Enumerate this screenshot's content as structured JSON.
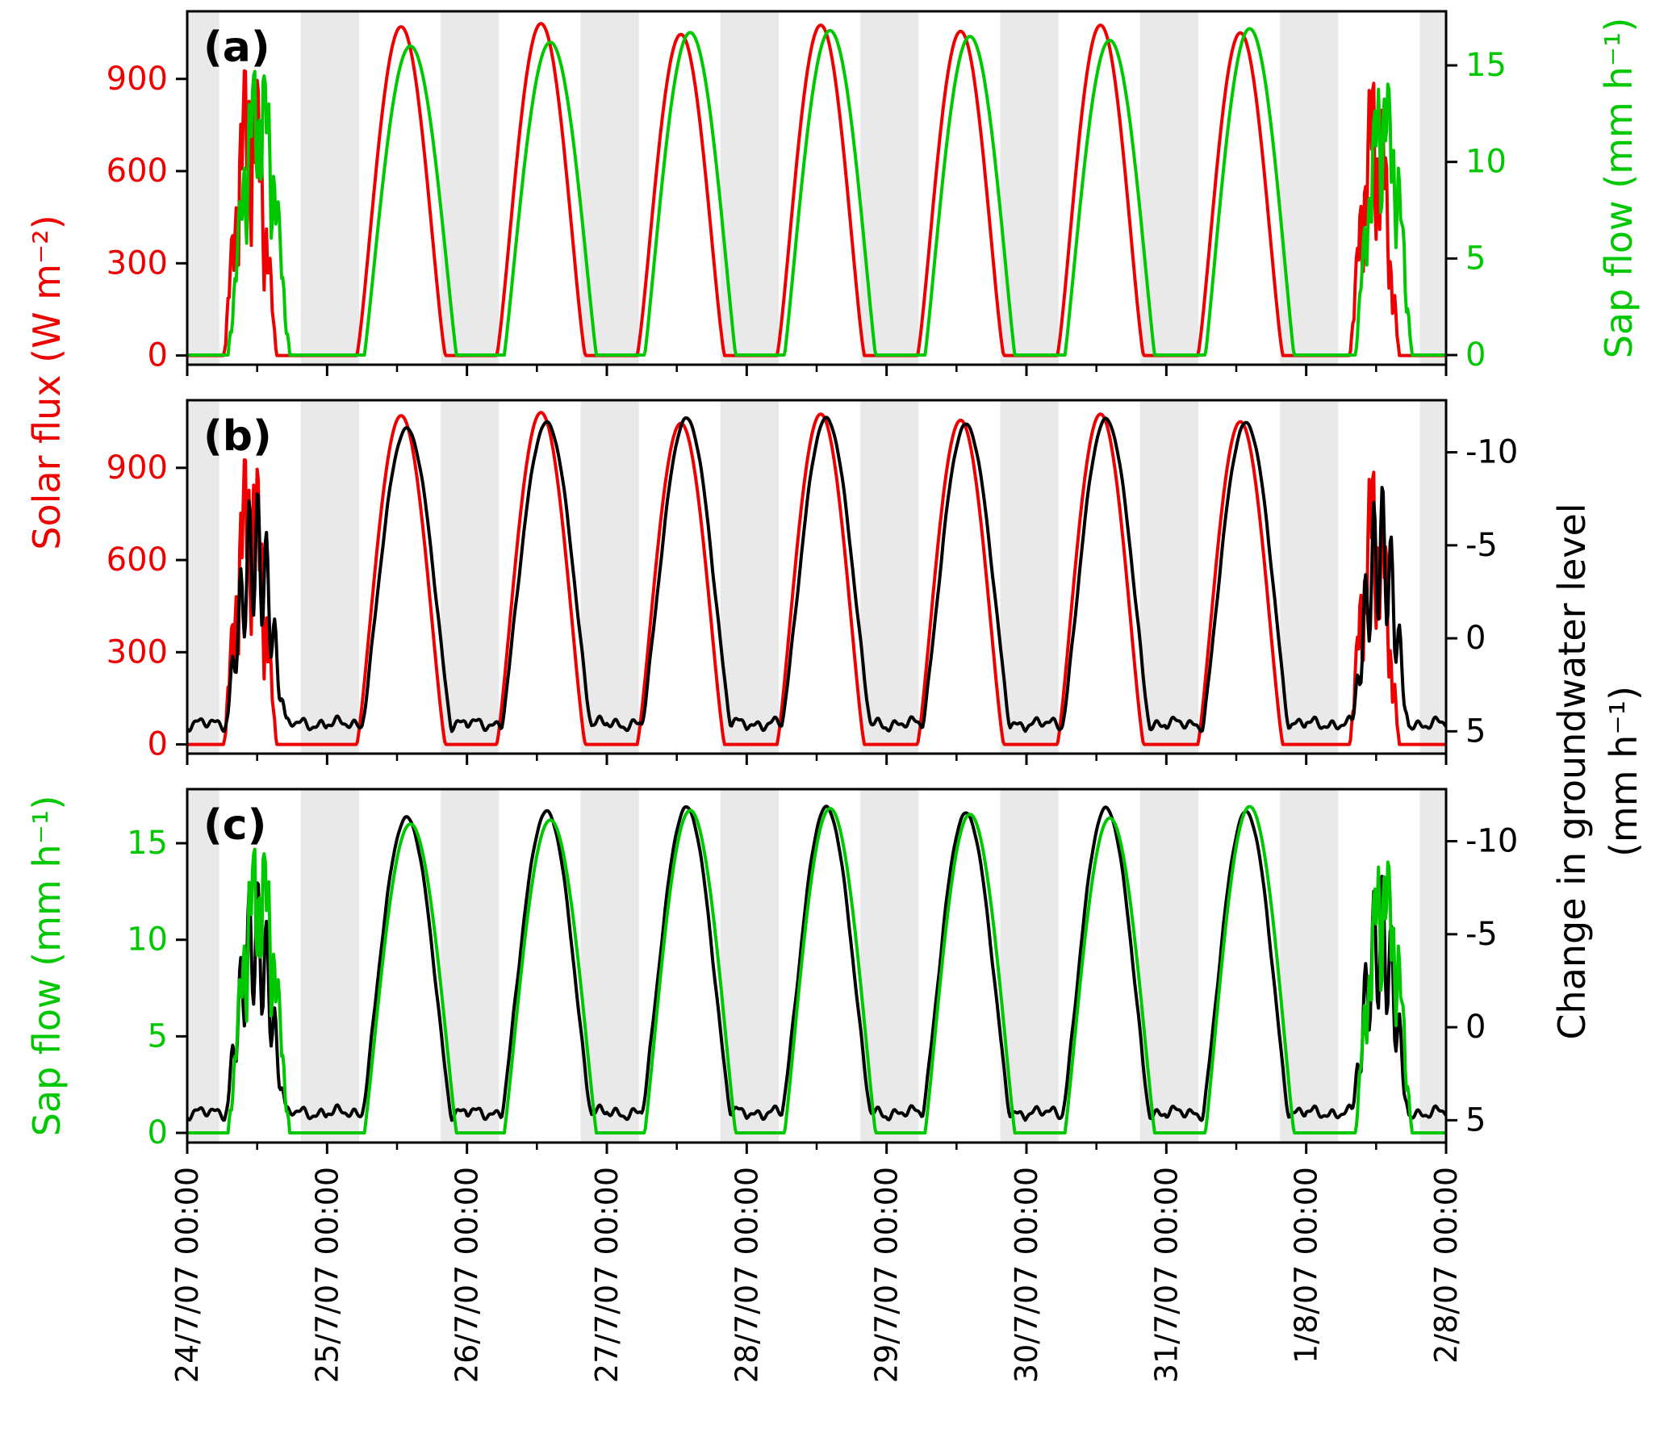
{
  "chart_data": {
    "type": "line",
    "title": "",
    "x_axis": {
      "tick_labels": [
        "24/7/07 00:00",
        "25/7/07 00:00",
        "26/7/07 00:00",
        "27/7/07 00:00",
        "28/7/07 00:00",
        "29/7/07 00:00",
        "30/7/07 00:00",
        "31/7/07 00:00",
        "1/8/07 00:00",
        "2/8/07 00:00"
      ],
      "hours_total": 216,
      "night_shading": {
        "evening_start": 19.5,
        "morning_end": 5.5,
        "color": "#e9e9e9"
      }
    },
    "axis_titles": {
      "left": [
        {
          "text": "Solar flux (W m⁻²)",
          "color": "#ee0000",
          "panels": [
            "a",
            "b"
          ]
        },
        {
          "text": "Sap flow (mm h⁻¹)",
          "color": "#00c800",
          "panels": [
            "c"
          ]
        }
      ],
      "right": [
        {
          "text": "Sap flow (mm h⁻¹)",
          "color": "#00c800",
          "panels": [
            "a"
          ]
        },
        {
          "text": "Change in groundwater level",
          "text2": "(mm h⁻¹)",
          "color": "#000000",
          "panels": [
            "b",
            "c"
          ]
        }
      ]
    },
    "panels": [
      {
        "id": "a",
        "tag": "(a)",
        "left": {
          "key_color": "#ee0000",
          "ticks": [
            "0",
            "300",
            "600",
            "900"
          ],
          "tick_values": [
            0,
            300,
            600,
            900
          ],
          "min": -30,
          "max": 1120
        },
        "right": {
          "key_color": "#00c800",
          "ticks": [
            "0",
            "5",
            "10",
            "15"
          ],
          "tick_values": [
            0,
            5,
            10,
            15
          ],
          "min": -0.5,
          "max": 17.8
        },
        "series": [
          {
            "key": "solar_flux",
            "axis": "left"
          },
          {
            "key": "sap_flow",
            "axis": "right"
          }
        ]
      },
      {
        "id": "b",
        "tag": "(b)",
        "left": {
          "key_color": "#ee0000",
          "ticks": [
            "0",
            "300",
            "600",
            "900"
          ],
          "tick_values": [
            0,
            300,
            600,
            900
          ],
          "min": -30,
          "max": 1120
        },
        "right": {
          "key_color": "#000000",
          "ticks": [
            "-10",
            "-5",
            "0",
            "5"
          ],
          "tick_values": [
            -10,
            -5,
            0,
            5
          ],
          "min": -12.8,
          "max": 6.2,
          "flip": true
        },
        "series": [
          {
            "key": "solar_flux",
            "axis": "left"
          },
          {
            "key": "groundwater",
            "axis": "right"
          }
        ]
      },
      {
        "id": "c",
        "tag": "(c)",
        "left": {
          "key_color": "#00c800",
          "ticks": [
            "0",
            "5",
            "10",
            "15"
          ],
          "tick_values": [
            0,
            5,
            10,
            15
          ],
          "min": -0.5,
          "max": 17.8
        },
        "right": {
          "key_color": "#000000",
          "ticks": [
            "-10",
            "-5",
            "0",
            "5"
          ],
          "tick_values": [
            -10,
            -5,
            0,
            5
          ],
          "min": -12.8,
          "max": 6.2,
          "flip": true
        },
        "series": [
          {
            "key": "groundwater",
            "axis": "right"
          },
          {
            "key": "sap_flow",
            "axis": "left"
          }
        ]
      }
    ],
    "series": {
      "solar_flux": {
        "name": "Solar flux (W m⁻²)",
        "color": "#ee0000",
        "days": [
          {
            "peak": 950,
            "start": 6.2,
            "end": 15.4,
            "cloudy": true
          },
          {
            "peak": 1070,
            "start": 5.1,
            "end": 20.3
          },
          {
            "peak": 1080,
            "start": 5.1,
            "end": 20.3
          },
          {
            "peak": 1045,
            "start": 5.2,
            "end": 20.2
          },
          {
            "peak": 1075,
            "start": 5.2,
            "end": 20.2
          },
          {
            "peak": 1055,
            "start": 5.3,
            "end": 20.1
          },
          {
            "peak": 1075,
            "start": 5.3,
            "end": 20.1
          },
          {
            "peak": 1050,
            "start": 5.4,
            "end": 20.0
          },
          {
            "peak": 880,
            "start": 7.4,
            "end": 16.0,
            "cloudy": true
          }
        ]
      },
      "sap_flow": {
        "name": "Sap flow (mm h⁻¹)",
        "color": "#00c800",
        "days": [
          {
            "peak": 14.6,
            "start": 7.0,
            "end": 17.6,
            "cloudy": true
          },
          {
            "peak": 16.0,
            "start": 6.4,
            "end": 22.2
          },
          {
            "peak": 16.2,
            "start": 6.4,
            "end": 22.2
          },
          {
            "peak": 16.7,
            "start": 6.5,
            "end": 22.1
          },
          {
            "peak": 16.8,
            "start": 6.5,
            "end": 22.1
          },
          {
            "peak": 16.5,
            "start": 6.6,
            "end": 22.0
          },
          {
            "peak": 16.3,
            "start": 6.6,
            "end": 22.0
          },
          {
            "peak": 16.9,
            "start": 6.7,
            "end": 21.9
          },
          {
            "peak": 14.0,
            "start": 8.4,
            "end": 18.2,
            "cloudy": true
          }
        ]
      },
      "groundwater": {
        "name": "Change in groundwater level (mm h⁻¹)",
        "color": "#000000",
        "night_baseline": 4.6,
        "days": [
          {
            "peak": -8.2,
            "start": 6.4,
            "end": 17.0,
            "cloudy": true
          },
          {
            "peak": -11.3,
            "start": 5.9,
            "end": 21.4
          },
          {
            "peak": -11.6,
            "start": 5.9,
            "end": 21.4
          },
          {
            "peak": -11.8,
            "start": 6.0,
            "end": 21.3
          },
          {
            "peak": -11.8,
            "start": 6.0,
            "end": 21.3
          },
          {
            "peak": -11.5,
            "start": 6.1,
            "end": 21.2
          },
          {
            "peak": -11.8,
            "start": 6.1,
            "end": 21.2
          },
          {
            "peak": -11.6,
            "start": 6.2,
            "end": 21.1
          },
          {
            "peak": -8.4,
            "start": 7.8,
            "end": 17.6,
            "cloudy": true
          }
        ]
      }
    }
  }
}
